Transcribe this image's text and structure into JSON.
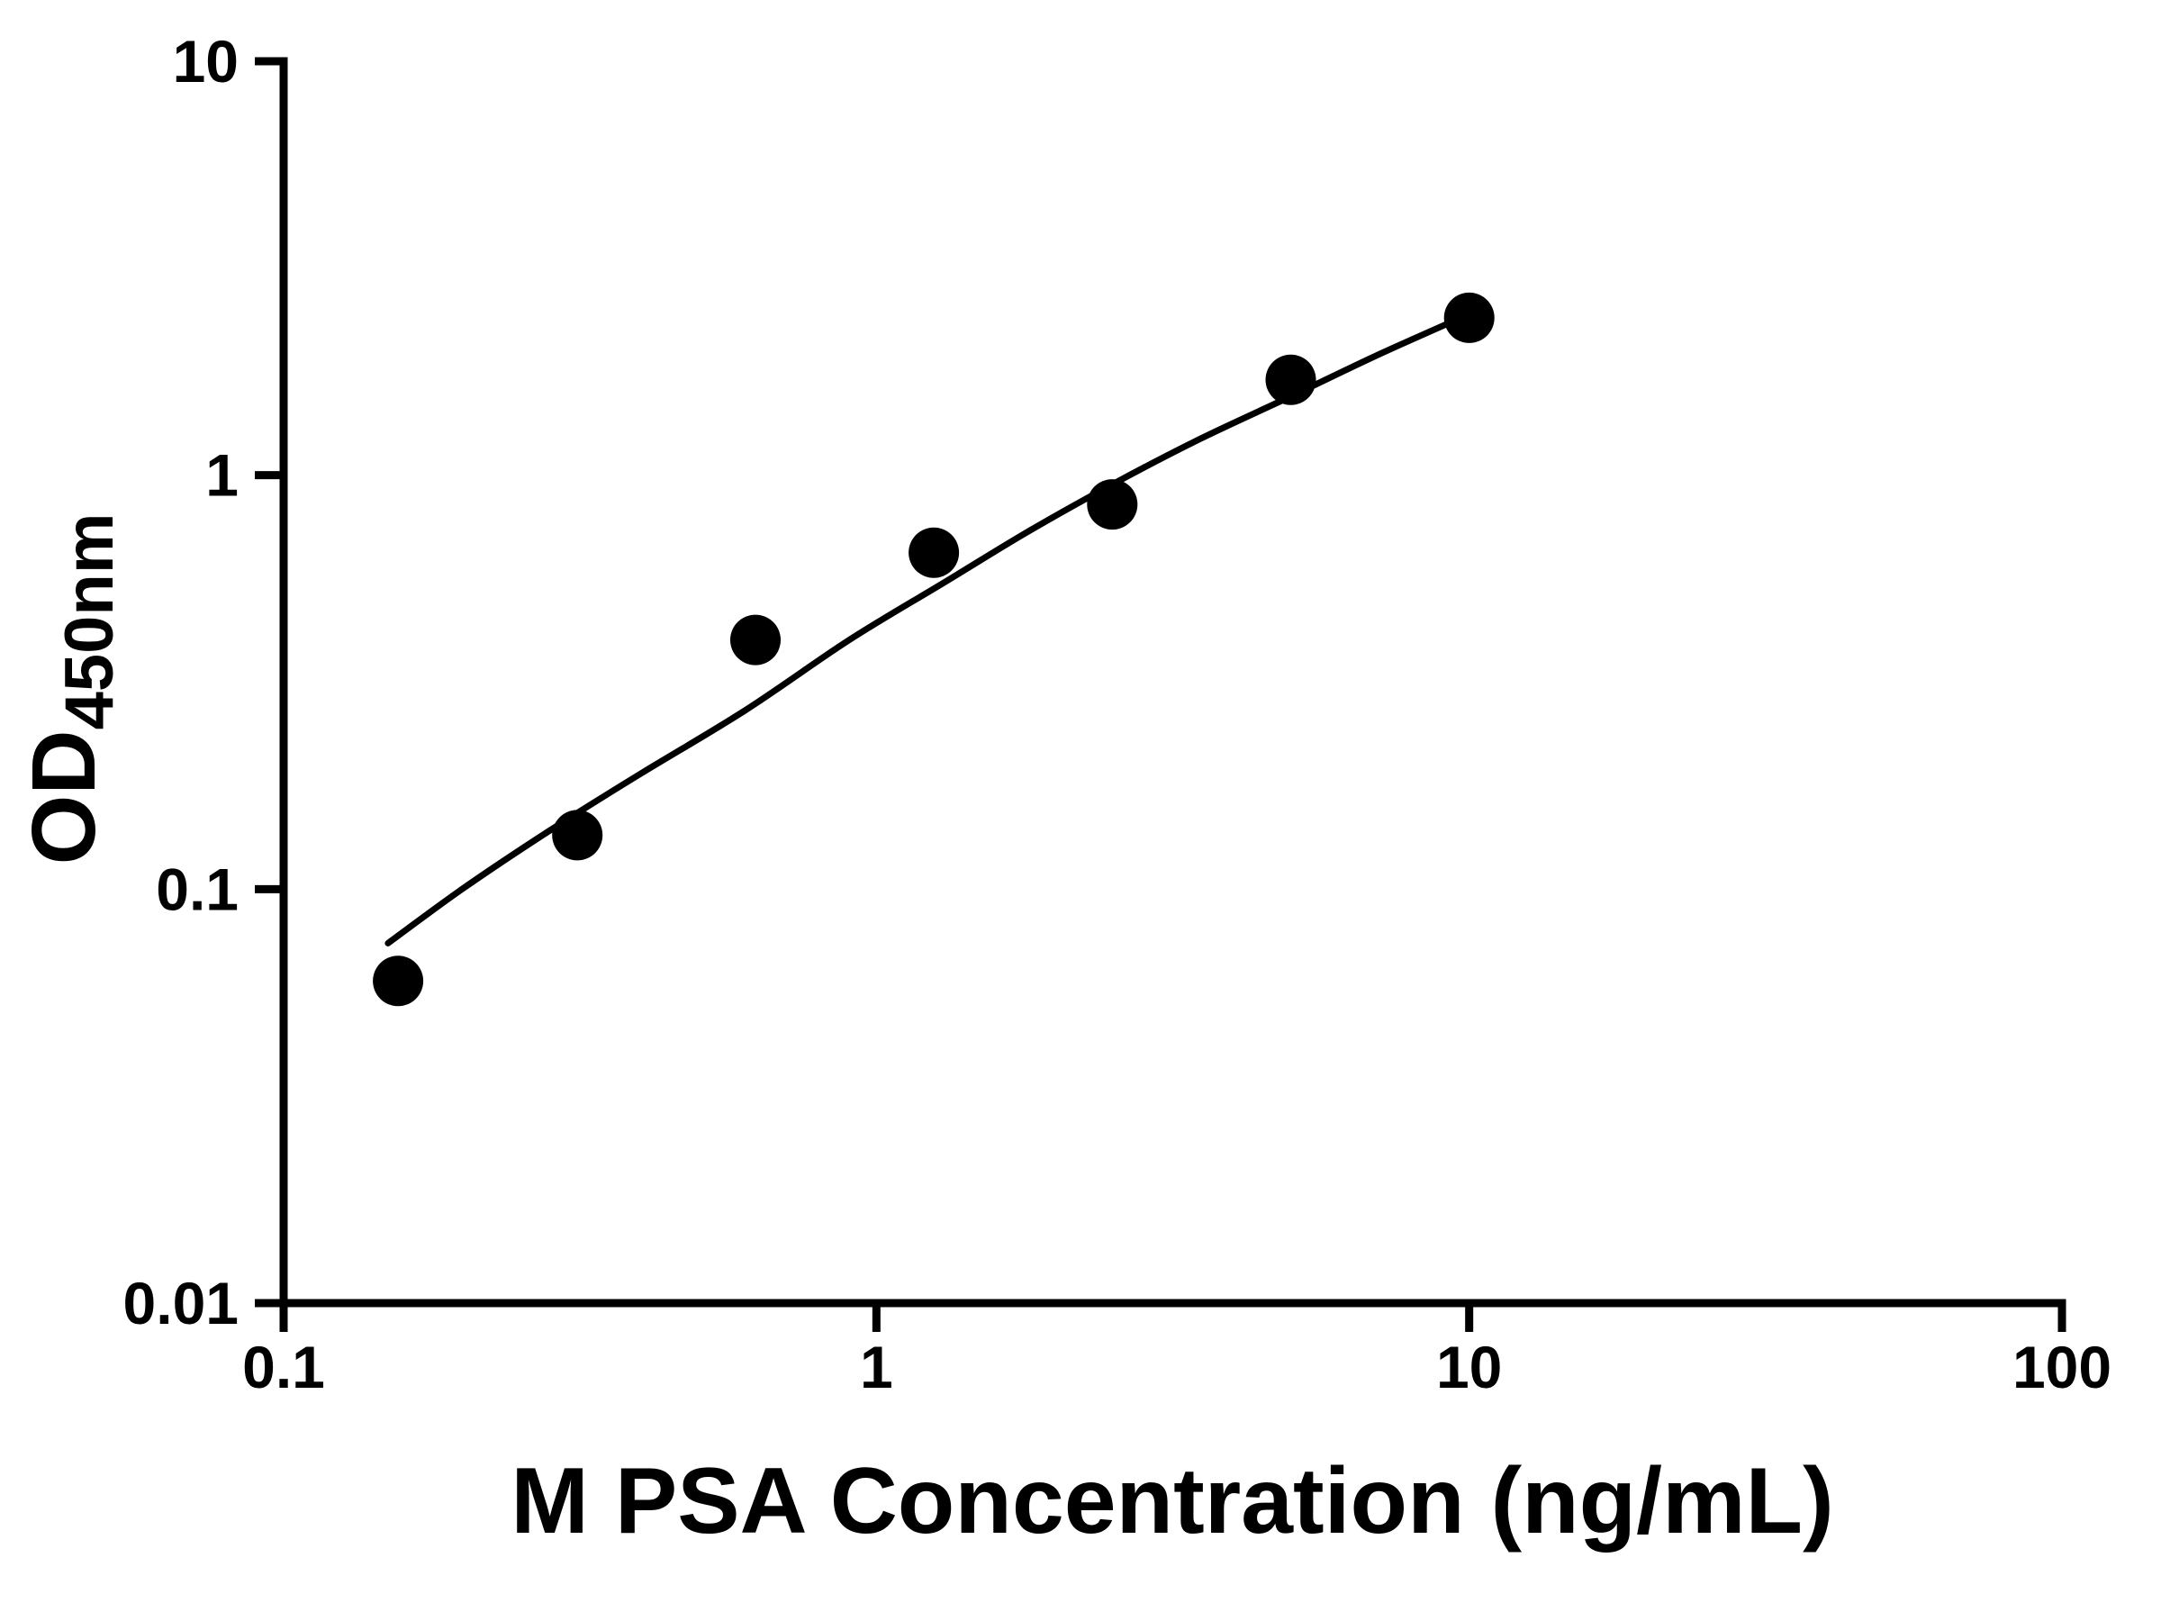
{
  "figure": {
    "background_color": "#ffffff",
    "axis_color": "#000000",
    "marker_color": "#000000",
    "curve_color": "#000000"
  },
  "chart_data": {
    "type": "scatter",
    "title": "",
    "xlabel": "M PSA Concentration (ng/mL)",
    "ylabel_main": "OD",
    "ylabel_sub": "450nm",
    "x_scale": "log10",
    "y_scale": "log10",
    "xlim": [
      0.1,
      100
    ],
    "ylim": [
      0.01,
      10
    ],
    "grid": false,
    "legend": "none",
    "x_ticks": [
      {
        "value": 0.1,
        "label": "0.1"
      },
      {
        "value": 1,
        "label": "1"
      },
      {
        "value": 10,
        "label": "10"
      },
      {
        "value": 100,
        "label": "100"
      }
    ],
    "y_ticks": [
      {
        "value": 0.01,
        "label": "0.01"
      },
      {
        "value": 0.1,
        "label": "0.1"
      },
      {
        "value": 1,
        "label": "1"
      },
      {
        "value": 10,
        "label": "10"
      }
    ],
    "x": [
      0.156,
      0.313,
      0.625,
      1.25,
      2.5,
      5,
      10
    ],
    "y": [
      0.06,
      0.135,
      0.4,
      0.65,
      0.85,
      1.7,
      2.4
    ],
    "fit_curve": {
      "x": [
        0.15,
        0.2,
        0.28,
        0.4,
        0.6,
        0.9,
        1.3,
        1.8,
        2.5,
        3.5,
        5,
        7,
        10
      ],
      "y": [
        0.074,
        0.1,
        0.138,
        0.19,
        0.27,
        0.4,
        0.55,
        0.73,
        0.95,
        1.22,
        1.55,
        1.95,
        2.45
      ]
    }
  }
}
